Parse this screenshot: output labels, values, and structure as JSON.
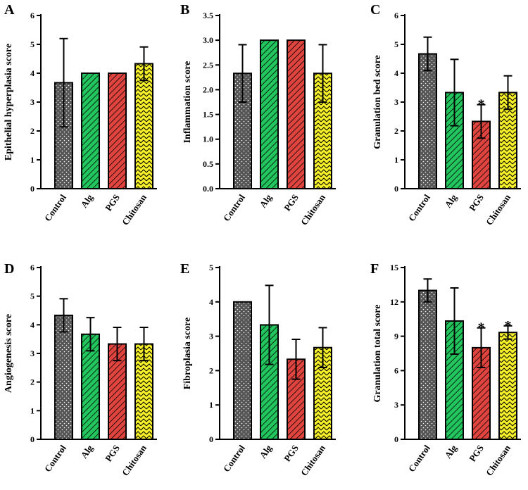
{
  "chart_data": [
    {
      "type": "bar",
      "panel_label": "A",
      "ylabel": "Epithelial hyperplasia score",
      "categories": [
        "Control",
        "Alg",
        "PGS",
        "Chitosan"
      ],
      "values": [
        3.67,
        4.0,
        4.0,
        4.33
      ],
      "errors": [
        1.53,
        0,
        0,
        0.58
      ],
      "significance": [
        "",
        "",
        "",
        ""
      ],
      "ylim": [
        0,
        6
      ],
      "yticks": [
        "0",
        "1",
        "2",
        "3",
        "4",
        "5",
        "6"
      ]
    },
    {
      "type": "bar",
      "panel_label": "B",
      "ylabel": "Inflammation score",
      "categories": [
        "Control",
        "Alg",
        "PGS",
        "Chitosan"
      ],
      "values": [
        2.33,
        3.0,
        3.0,
        2.33
      ],
      "errors": [
        0.58,
        0,
        0,
        0.58
      ],
      "significance": [
        "",
        "",
        "",
        ""
      ],
      "ylim": [
        0,
        3.5
      ],
      "yticks": [
        "0.0",
        "0.5",
        "1.0",
        "1.5",
        "2.0",
        "2.5",
        "3.0",
        "3.5"
      ]
    },
    {
      "type": "bar",
      "panel_label": "C",
      "ylabel": "Granulation bed score",
      "categories": [
        "Control",
        "Alg",
        "PGS",
        "Chitosan"
      ],
      "values": [
        4.67,
        3.33,
        2.33,
        3.33
      ],
      "errors": [
        0.58,
        1.15,
        0.58,
        0.58
      ],
      "significance": [
        "",
        "",
        "*",
        ""
      ],
      "ylim": [
        0,
        6
      ],
      "yticks": [
        "0",
        "1",
        "2",
        "3",
        "4",
        "5",
        "6"
      ]
    },
    {
      "type": "bar",
      "panel_label": "D",
      "ylabel": "Angiogenesis score",
      "categories": [
        "Control",
        "Alg",
        "PGS",
        "Chitosan"
      ],
      "values": [
        4.33,
        3.67,
        3.33,
        3.33
      ],
      "errors": [
        0.58,
        0.58,
        0.58,
        0.58
      ],
      "significance": [
        "",
        "",
        "",
        ""
      ],
      "ylim": [
        0,
        6
      ],
      "yticks": [
        "0",
        "1",
        "2",
        "3",
        "4",
        "5",
        "6"
      ]
    },
    {
      "type": "bar",
      "panel_label": "E",
      "ylabel": "Fibroplasia score",
      "categories": [
        "Control",
        "Alg",
        "PGS",
        "Chitosan"
      ],
      "values": [
        4.0,
        3.33,
        2.33,
        2.67
      ],
      "errors": [
        0,
        1.15,
        0.58,
        0.58
      ],
      "significance": [
        "",
        "",
        "",
        ""
      ],
      "ylim": [
        0,
        5
      ],
      "yticks": [
        "0",
        "1",
        "2",
        "3",
        "4",
        "5"
      ]
    },
    {
      "type": "bar",
      "panel_label": "F",
      "ylabel": "Granulation total score",
      "categories": [
        "Control",
        "Alg",
        "PGS",
        "Chitosan"
      ],
      "values": [
        13.0,
        10.33,
        8.0,
        9.33
      ],
      "errors": [
        1.0,
        2.89,
        1.73,
        0.58
      ],
      "significance": [
        "",
        "",
        "*",
        "*"
      ],
      "ylim": [
        0,
        15
      ],
      "yticks": [
        "0",
        "3",
        "6",
        "9",
        "12",
        "15"
      ]
    }
  ],
  "colors": {
    "Control": "#555555",
    "Alg": "#22c55e",
    "PGS": "#e0443e",
    "Chitosan": "#f5f02a",
    "axis": "#000000"
  }
}
